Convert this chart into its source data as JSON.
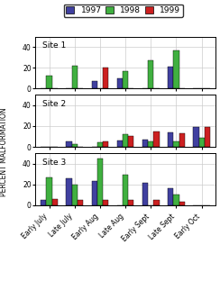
{
  "categories": [
    "Early July",
    "Late July",
    "Early Aug",
    "Late Aug",
    "Early Sept",
    "Late Sept",
    "Early Oct"
  ],
  "years": [
    "1997",
    "1998",
    "1999"
  ],
  "year_colors": [
    "#4040a0",
    "#40b040",
    "#cc2020"
  ],
  "sites": [
    "Site 1",
    "Site 2",
    "Site 3"
  ],
  "data": {
    "Site 1": {
      "1997": [
        0,
        0,
        7,
        10,
        0,
        21,
        0
      ],
      "1998": [
        12,
        22,
        0,
        17,
        27,
        37,
        0
      ],
      "1999": [
        0,
        0,
        20,
        0,
        0,
        0,
        0
      ]
    },
    "Site 2": {
      "1997": [
        0,
        5,
        0,
        6,
        7,
        14,
        19
      ],
      "1998": [
        0,
        3,
        4,
        12,
        5,
        5,
        9
      ],
      "1999": [
        0,
        0,
        5,
        10,
        15,
        13,
        19
      ]
    },
    "Site 3": {
      "1997": [
        5,
        26,
        23,
        0,
        21,
        16,
        0
      ],
      "1998": [
        27,
        20,
        45,
        29,
        0,
        10,
        0
      ],
      "1999": [
        6,
        5,
        5,
        5,
        5,
        3,
        0
      ]
    }
  },
  "ylim": [
    0,
    50
  ],
  "yticks": [
    0,
    20,
    40
  ],
  "ylabel": "PERCENT MALFORMATION",
  "legend_fontsize": 6.5,
  "tick_labelsize": 5.5,
  "bar_width": 0.22,
  "background_color": "#ffffff",
  "grid_color": "#cccccc",
  "site_label_fontsize": 6.5
}
